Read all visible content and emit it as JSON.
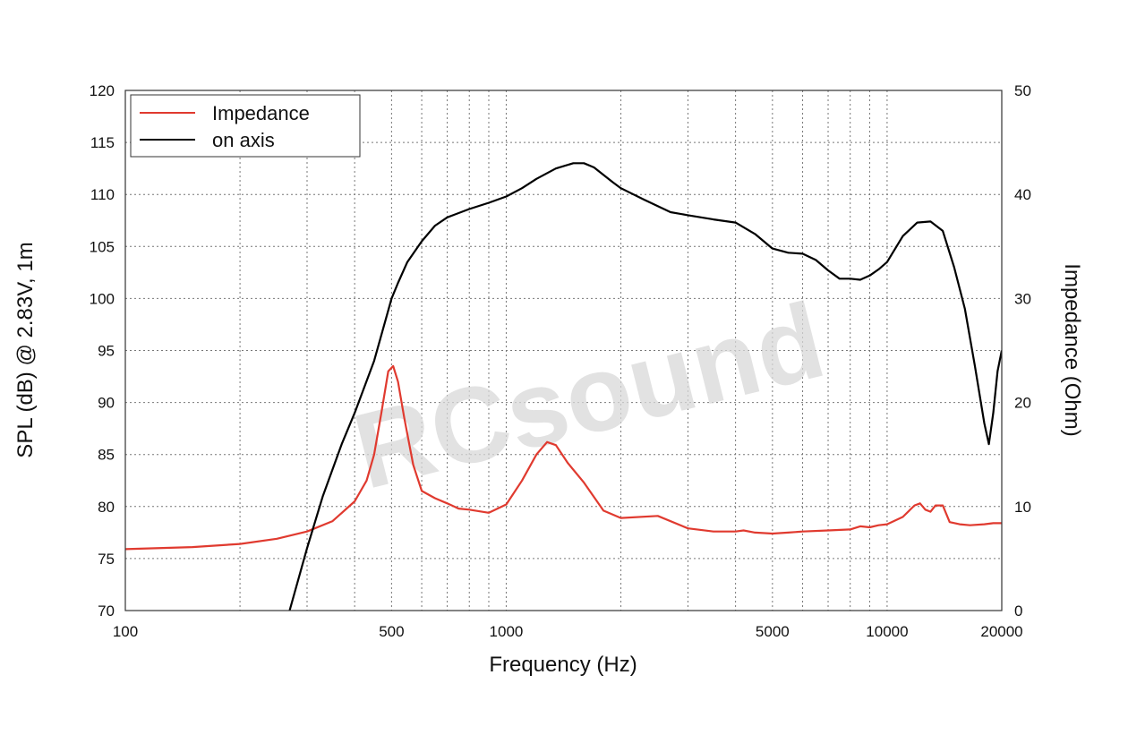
{
  "watermark": "RCsound",
  "chart_data": {
    "type": "line",
    "xlabel": "Frequency (Hz)",
    "ylabel": "SPL (dB) @ 2.83V, 1m",
    "y2label": "Impedance (Ohm)",
    "xscale": "log",
    "xlim": [
      100,
      20000
    ],
    "ylim": [
      70,
      120
    ],
    "y2lim": [
      0,
      50
    ],
    "grid": true,
    "x_tick_labels": [
      {
        "value": 100,
        "label": "100"
      },
      {
        "value": 500,
        "label": "500"
      },
      {
        "value": 1000,
        "label": "1000"
      },
      {
        "value": 5000,
        "label": "5000"
      },
      {
        "value": 10000,
        "label": "10000"
      },
      {
        "value": 20000,
        "label": "20000"
      }
    ],
    "y_ticks": [
      70,
      75,
      80,
      85,
      90,
      95,
      100,
      105,
      110,
      115,
      120
    ],
    "y2_ticks": [
      0,
      10,
      20,
      30,
      40,
      50
    ],
    "legend": {
      "position": "top-left"
    },
    "series": [
      {
        "name": "Impedance",
        "axis": "right",
        "color": "#e03a2f",
        "points": [
          [
            100,
            5.9
          ],
          [
            150,
            6.1
          ],
          [
            200,
            6.4
          ],
          [
            250,
            6.9
          ],
          [
            300,
            7.6
          ],
          [
            350,
            8.6
          ],
          [
            400,
            10.5
          ],
          [
            430,
            12.5
          ],
          [
            450,
            15
          ],
          [
            470,
            19
          ],
          [
            490,
            23
          ],
          [
            505,
            23.5
          ],
          [
            520,
            22
          ],
          [
            540,
            18.5
          ],
          [
            570,
            14
          ],
          [
            600,
            11.5
          ],
          [
            650,
            10.8
          ],
          [
            700,
            10.3
          ],
          [
            750,
            9.8
          ],
          [
            800,
            9.7
          ],
          [
            900,
            9.4
          ],
          [
            1000,
            10.2
          ],
          [
            1100,
            12.5
          ],
          [
            1200,
            15
          ],
          [
            1280,
            16.2
          ],
          [
            1350,
            15.9
          ],
          [
            1450,
            14.2
          ],
          [
            1600,
            12.3
          ],
          [
            1800,
            9.6
          ],
          [
            2000,
            8.9
          ],
          [
            2500,
            9.1
          ],
          [
            3000,
            7.9
          ],
          [
            3500,
            7.6
          ],
          [
            4000,
            7.6
          ],
          [
            4200,
            7.7
          ],
          [
            4500,
            7.5
          ],
          [
            5000,
            7.4
          ],
          [
            5500,
            7.5
          ],
          [
            6000,
            7.6
          ],
          [
            7000,
            7.7
          ],
          [
            8000,
            7.8
          ],
          [
            8500,
            8.1
          ],
          [
            9000,
            8.0
          ],
          [
            9500,
            8.2
          ],
          [
            10000,
            8.3
          ],
          [
            11000,
            9.0
          ],
          [
            11800,
            10.1
          ],
          [
            12200,
            10.3
          ],
          [
            12600,
            9.7
          ],
          [
            13000,
            9.5
          ],
          [
            13400,
            10.1
          ],
          [
            14000,
            10.1
          ],
          [
            14600,
            8.5
          ],
          [
            15500,
            8.3
          ],
          [
            16500,
            8.2
          ],
          [
            18000,
            8.3
          ],
          [
            19000,
            8.4
          ],
          [
            20000,
            8.4
          ]
        ]
      },
      {
        "name": "on axis",
        "axis": "left",
        "color": "#000000",
        "points": [
          [
            270,
            70
          ],
          [
            300,
            76
          ],
          [
            330,
            81
          ],
          [
            370,
            86
          ],
          [
            400,
            89
          ],
          [
            450,
            94
          ],
          [
            500,
            100
          ],
          [
            520,
            101.5
          ],
          [
            550,
            103.5
          ],
          [
            600,
            105.5
          ],
          [
            650,
            107
          ],
          [
            700,
            107.8
          ],
          [
            800,
            108.6
          ],
          [
            900,
            109.2
          ],
          [
            1000,
            109.8
          ],
          [
            1100,
            110.6
          ],
          [
            1200,
            111.5
          ],
          [
            1350,
            112.5
          ],
          [
            1500,
            113
          ],
          [
            1600,
            113
          ],
          [
            1700,
            112.6
          ],
          [
            1900,
            111.2
          ],
          [
            2000,
            110.6
          ],
          [
            2300,
            109.5
          ],
          [
            2700,
            108.3
          ],
          [
            3000,
            108
          ],
          [
            3500,
            107.6
          ],
          [
            4000,
            107.3
          ],
          [
            4500,
            106.2
          ],
          [
            5000,
            104.8
          ],
          [
            5500,
            104.4
          ],
          [
            6000,
            104.3
          ],
          [
            6500,
            103.7
          ],
          [
            7000,
            102.7
          ],
          [
            7500,
            101.9
          ],
          [
            8000,
            101.9
          ],
          [
            8500,
            101.8
          ],
          [
            9000,
            102.2
          ],
          [
            9500,
            102.8
          ],
          [
            10000,
            103.5
          ],
          [
            11000,
            106
          ],
          [
            12000,
            107.3
          ],
          [
            13000,
            107.4
          ],
          [
            14000,
            106.5
          ],
          [
            15000,
            103
          ],
          [
            16000,
            99
          ],
          [
            17000,
            93.5
          ],
          [
            18000,
            88
          ],
          [
            18500,
            86
          ],
          [
            19000,
            89
          ],
          [
            19500,
            93
          ],
          [
            20000,
            95
          ]
        ]
      }
    ]
  }
}
